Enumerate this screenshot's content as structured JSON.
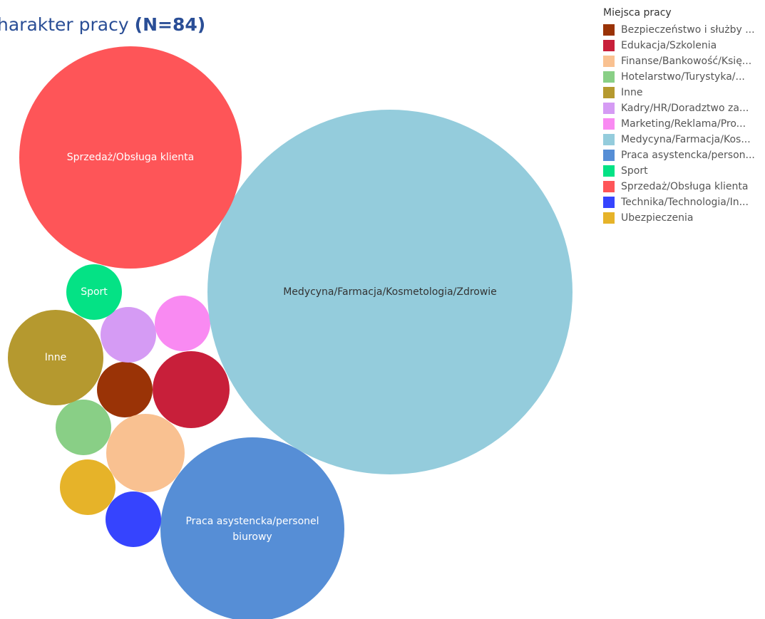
{
  "chart_data": {
    "type": "bubble",
    "title": "harakter pracy",
    "subtitle": "(N=84)",
    "legend_title": "Miejsca pracy",
    "legend_placement": "right",
    "categories": [
      {
        "name": "Bezpieczeństwo i służby mundurowe",
        "legend_label": "Bezpieczeństwo i służby ...",
        "color": "#9a3306",
        "show_label": false
      },
      {
        "name": "Edukacja/Szkolenia",
        "legend_label": "Edukacja/Szkolenia",
        "color": "#c81f3a",
        "show_label": false
      },
      {
        "name": "Finanse/Bankowość/Księgowość",
        "legend_label": "Finanse/Bankowość/Księ...",
        "color": "#f9c191",
        "show_label": false
      },
      {
        "name": "Hotelarstwo/Turystyka/Gastronomia",
        "legend_label": "Hotelarstwo/Turystyka/...",
        "color": "#89cf86",
        "show_label": false
      },
      {
        "name": "Inne",
        "legend_label": "Inne",
        "color": "#b5992f",
        "show_label": true
      },
      {
        "name": "Kadry/HR/Doradztwo zawodowe",
        "legend_label": "Kadry/HR/Doradztwo za...",
        "color": "#d59bf4",
        "show_label": false
      },
      {
        "name": "Marketing/Reklama/Promocja",
        "legend_label": "Marketing/Reklama/Pro...",
        "color": "#f98af2",
        "show_label": false
      },
      {
        "name": "Medycyna/Farmacja/Kosmetologia/Zdrowie",
        "legend_label": "Medycyna/Farmacja/Kos...",
        "color": "#94ccdc",
        "show_label": true
      },
      {
        "name": "Praca asystencka/personel biurowy",
        "legend_label": "Praca asystencka/person...",
        "color": "#568ed6",
        "show_label": true
      },
      {
        "name": "Sport",
        "legend_label": "Sport",
        "color": "#04e285",
        "show_label": true
      },
      {
        "name": "Sprzedaż/Obsługa klienta",
        "legend_label": "Sprzedaż/Obsługa klienta",
        "color": "#fe5558",
        "show_label": true
      },
      {
        "name": "Technika/Technologia/Inżynieria",
        "legend_label": "Technika/Technologia/In...",
        "color": "#3644fe",
        "show_label": false
      },
      {
        "name": "Ubezpieczenia",
        "legend_label": "Ubezpieczenia",
        "color": "#e6b329",
        "show_label": false
      }
    ]
  }
}
